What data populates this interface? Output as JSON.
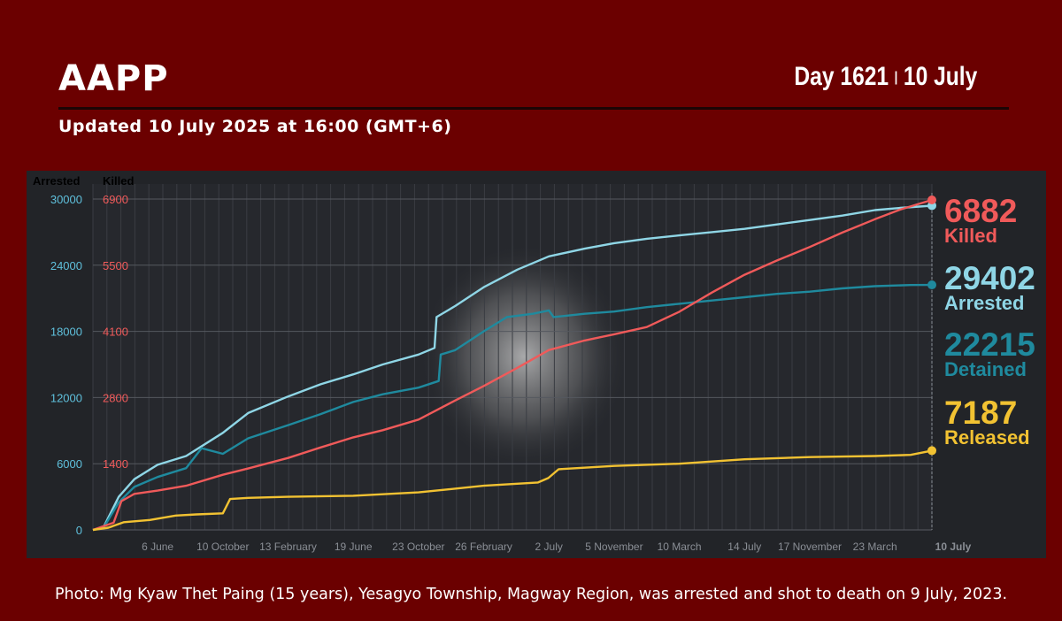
{
  "header": {
    "title": "AAPP",
    "day_label": "Day 1621",
    "separator": "|",
    "date_label": "10 July",
    "updated": "Updated 10 July 2025 at 16:00 (GMT+6)"
  },
  "caption": "Photo: Mg Kyaw Thet Paing (15 years), Yesagyo Township, Magway Region, was arrested and shot to death on 9 July, 2023.",
  "colors": {
    "background": "#6b0000",
    "plot_bg": "#222428",
    "arrested": "#8fd6e6",
    "detained": "#1f8a9e",
    "killed": "#f05a5a",
    "released": "#f2c232",
    "axis_arrested": "#5fc0dc",
    "axis_killed": "#f05a5a"
  },
  "chart_data": {
    "type": "line",
    "x_unit": "days",
    "x_range": [
      0,
      1621
    ],
    "x_tick_labels": [
      "6 June",
      "10 October",
      "13 February",
      "19 June",
      "23 October",
      "26 February",
      "2 July",
      "5 November",
      "10 March",
      "14 July",
      "17 November",
      "23 March",
      "10 July"
    ],
    "x_tick_days": [
      125,
      251,
      377,
      503,
      629,
      755,
      881,
      1007,
      1133,
      1259,
      1385,
      1511,
      1621
    ],
    "y_left": {
      "label": "Arrested",
      "ticks": [
        "30000",
        "24000",
        "18000",
        "12000",
        "6000",
        "0"
      ],
      "range": [
        0,
        30000
      ]
    },
    "y_right": {
      "label": "Killed",
      "ticks": [
        "6900",
        "5500",
        "4100",
        "2800",
        "1400"
      ],
      "range": [
        0,
        6900
      ]
    },
    "grid": true,
    "series": [
      {
        "key": "arrested",
        "name": "Arrested",
        "axis": "left",
        "final": "29402",
        "points": [
          [
            0,
            0
          ],
          [
            20,
            200
          ],
          [
            50,
            3000
          ],
          [
            80,
            4600
          ],
          [
            125,
            5900
          ],
          [
            180,
            6700
          ],
          [
            251,
            8800
          ],
          [
            300,
            10600
          ],
          [
            377,
            12100
          ],
          [
            440,
            13200
          ],
          [
            503,
            14100
          ],
          [
            560,
            15000
          ],
          [
            629,
            15900
          ],
          [
            660,
            16500
          ],
          [
            664,
            19300
          ],
          [
            700,
            20300
          ],
          [
            755,
            22000
          ],
          [
            820,
            23600
          ],
          [
            881,
            24800
          ],
          [
            950,
            25500
          ],
          [
            1007,
            26000
          ],
          [
            1070,
            26400
          ],
          [
            1133,
            26700
          ],
          [
            1196,
            27000
          ],
          [
            1259,
            27300
          ],
          [
            1322,
            27700
          ],
          [
            1385,
            28100
          ],
          [
            1448,
            28500
          ],
          [
            1511,
            29000
          ],
          [
            1560,
            29200
          ],
          [
            1621,
            29402
          ]
        ]
      },
      {
        "key": "detained",
        "name": "Detained",
        "axis": "left",
        "final": "22215",
        "points": [
          [
            0,
            0
          ],
          [
            20,
            150
          ],
          [
            50,
            2500
          ],
          [
            80,
            3900
          ],
          [
            125,
            4800
          ],
          [
            180,
            5600
          ],
          [
            210,
            7400
          ],
          [
            251,
            6900
          ],
          [
            300,
            8300
          ],
          [
            377,
            9500
          ],
          [
            440,
            10500
          ],
          [
            503,
            11600
          ],
          [
            560,
            12300
          ],
          [
            629,
            12900
          ],
          [
            668,
            13500
          ],
          [
            672,
            15900
          ],
          [
            700,
            16300
          ],
          [
            755,
            18000
          ],
          [
            800,
            19300
          ],
          [
            850,
            19600
          ],
          [
            881,
            19900
          ],
          [
            890,
            19300
          ],
          [
            950,
            19600
          ],
          [
            1007,
            19800
          ],
          [
            1070,
            20200
          ],
          [
            1133,
            20500
          ],
          [
            1196,
            20800
          ],
          [
            1259,
            21100
          ],
          [
            1322,
            21400
          ],
          [
            1385,
            21600
          ],
          [
            1448,
            21900
          ],
          [
            1511,
            22100
          ],
          [
            1580,
            22200
          ],
          [
            1621,
            22215
          ]
        ]
      },
      {
        "key": "killed",
        "name": "Killed",
        "axis": "right",
        "final": "6882",
        "points": [
          [
            0,
            0
          ],
          [
            40,
            150
          ],
          [
            55,
            600
          ],
          [
            80,
            750
          ],
          [
            125,
            820
          ],
          [
            180,
            920
          ],
          [
            251,
            1150
          ],
          [
            300,
            1280
          ],
          [
            377,
            1500
          ],
          [
            440,
            1720
          ],
          [
            503,
            1930
          ],
          [
            560,
            2080
          ],
          [
            629,
            2300
          ],
          [
            700,
            2700
          ],
          [
            755,
            3000
          ],
          [
            820,
            3380
          ],
          [
            881,
            3750
          ],
          [
            950,
            3950
          ],
          [
            1007,
            4080
          ],
          [
            1070,
            4230
          ],
          [
            1133,
            4550
          ],
          [
            1196,
            4950
          ],
          [
            1259,
            5320
          ],
          [
            1322,
            5620
          ],
          [
            1385,
            5900
          ],
          [
            1448,
            6200
          ],
          [
            1511,
            6480
          ],
          [
            1560,
            6680
          ],
          [
            1621,
            6882
          ]
        ]
      },
      {
        "key": "released",
        "name": "Released",
        "axis": "left",
        "final": "7187",
        "points": [
          [
            0,
            0
          ],
          [
            30,
            200
          ],
          [
            60,
            700
          ],
          [
            110,
            900
          ],
          [
            160,
            1300
          ],
          [
            200,
            1400
          ],
          [
            251,
            1500
          ],
          [
            265,
            2800
          ],
          [
            300,
            2900
          ],
          [
            377,
            3000
          ],
          [
            503,
            3100
          ],
          [
            629,
            3400
          ],
          [
            755,
            4000
          ],
          [
            860,
            4300
          ],
          [
            880,
            4700
          ],
          [
            900,
            5500
          ],
          [
            1007,
            5800
          ],
          [
            1133,
            6000
          ],
          [
            1259,
            6400
          ],
          [
            1385,
            6600
          ],
          [
            1511,
            6700
          ],
          [
            1580,
            6800
          ],
          [
            1621,
            7187
          ]
        ]
      }
    ]
  }
}
